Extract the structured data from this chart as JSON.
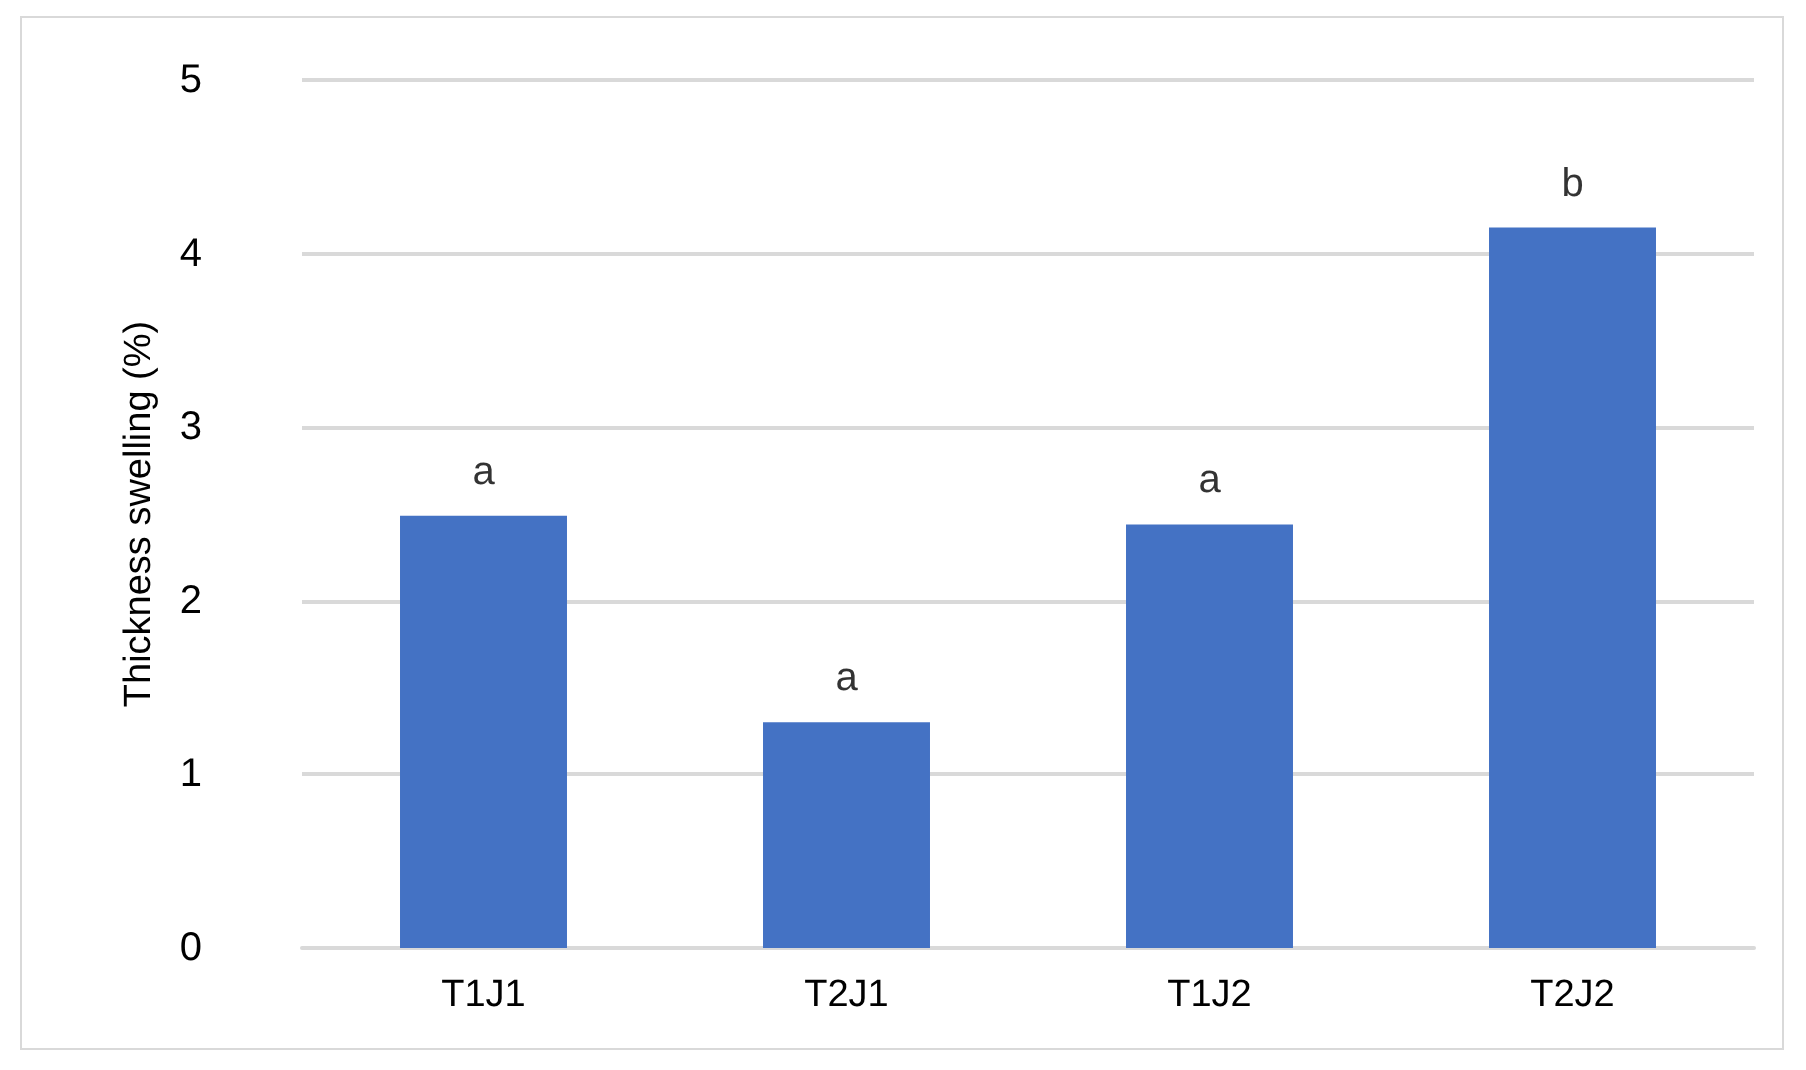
{
  "chart_data": {
    "type": "bar",
    "ylabel": "Thickness swelling (%)",
    "categories": [
      "T1J1",
      "T2J1",
      "T1J2",
      "T2J2"
    ],
    "values": [
      2.49,
      1.3,
      2.44,
      4.15
    ],
    "color": "#4472c4",
    "ylim": [
      0,
      5
    ],
    "yticks": [
      0,
      1,
      2,
      3,
      4,
      5
    ],
    "grid": "y",
    "annotations": [
      {
        "text": "a",
        "x": "T1J1",
        "y": 2.49
      },
      {
        "text": "a",
        "x": "T2J1",
        "y": 1.3
      },
      {
        "text": "a",
        "x": "T1J2",
        "y": 2.44
      },
      {
        "text": "b",
        "x": "T2J2",
        "y": 4.15
      }
    ]
  }
}
